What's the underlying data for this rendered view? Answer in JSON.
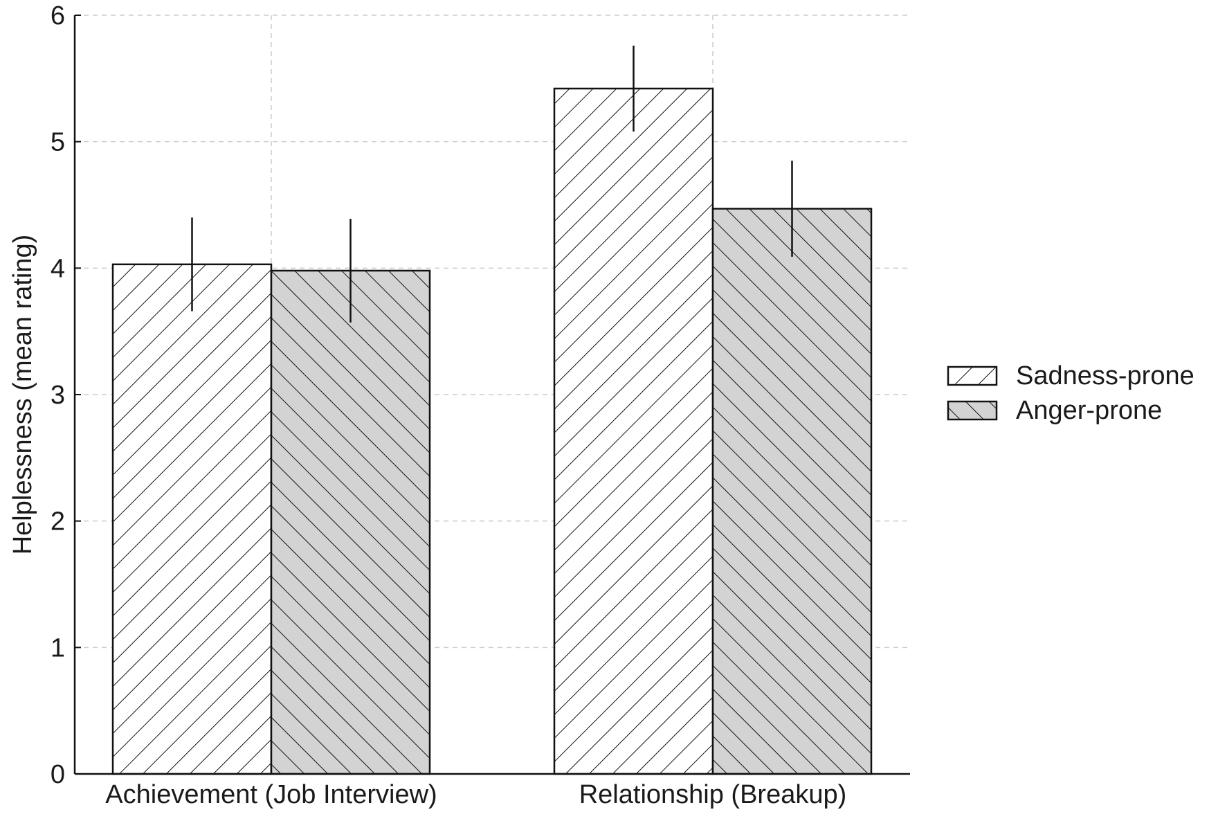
{
  "chart_data": {
    "type": "bar",
    "title": "",
    "xlabel": "",
    "ylabel": "Helplessness (mean rating)",
    "categories": [
      "Achievement (Job Interview)",
      "Relationship (Breakup)"
    ],
    "series": [
      {
        "name": "Sadness-prone",
        "values": [
          4.03,
          5.42
        ],
        "errors": [
          0.37,
          0.34
        ],
        "fill": "#ffffff",
        "hatch": "forward"
      },
      {
        "name": "Anger-prone",
        "values": [
          3.98,
          4.47
        ],
        "errors": [
          0.41,
          0.38
        ],
        "fill": "#d3d3d3",
        "hatch": "back"
      }
    ],
    "ylim": [
      0,
      6
    ],
    "yticks": [
      "0",
      "1",
      "2",
      "3",
      "4",
      "5",
      "6"
    ],
    "grid": true,
    "legend_position": "right"
  }
}
